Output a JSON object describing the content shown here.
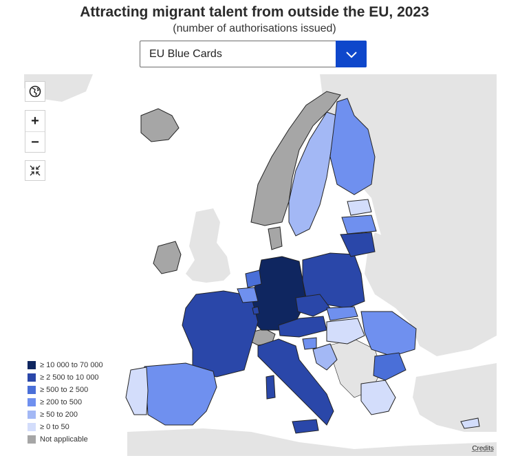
{
  "header": {
    "title": "Attracting migrant talent from outside the EU, 2023",
    "subtitle": "(number of authorisations issued)"
  },
  "dropdown": {
    "selected": "EU Blue Cards",
    "icon": "chevron-down-icon"
  },
  "map_controls": {
    "globe_icon": "globe-icon",
    "zoom_in_label": "+",
    "zoom_out_label": "−",
    "reset_icon": "collapse-arrows-icon"
  },
  "legend": {
    "items": [
      {
        "label": "≥ 10 000 to 70 000",
        "color": "#0f2660"
      },
      {
        "label": "≥ 2 500 to 10 000",
        "color": "#2a47a9"
      },
      {
        "label": "≥ 500 to 2 500",
        "color": "#4a6fd8"
      },
      {
        "label": "≥ 200 to 500",
        "color": "#6f90ef"
      },
      {
        "label": "≥ 50 to 200",
        "color": "#a3b8f5"
      },
      {
        "label": "≥ 0 to 50",
        "color": "#d3ddfb"
      },
      {
        "label": "Not applicable",
        "color": "#a6a6a6"
      }
    ]
  },
  "map_colors": {
    "non_eu": "#e4e4e4",
    "sea": "#ffffff",
    "border": "#222222"
  },
  "credits": "Credits"
}
